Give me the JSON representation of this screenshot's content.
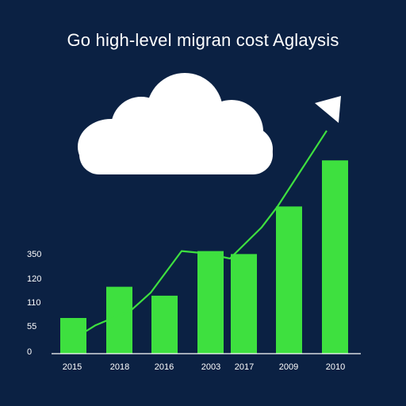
{
  "chart_data": {
    "type": "bar",
    "title": "Go high-level migran cost Aglaysis",
    "categories": [
      "2015",
      "2018",
      "2016",
      "2003",
      "2017",
      "2009",
      "2010"
    ],
    "values": [
      48,
      90,
      78,
      138,
      134,
      198,
      260
    ],
    "line": [
      30,
      38,
      58,
      82,
      138,
      135,
      128,
      170,
      198,
      300
    ],
    "y_tick_labels": [
      "0",
      "55",
      "110",
      "120",
      "350"
    ],
    "ylim": [
      0,
      320
    ],
    "grid": false,
    "colors": {
      "background": "#0b2143",
      "bar": "#3ee03f",
      "line": "#3ee03f",
      "text": "#ffffff",
      "cloud": "#ffffff"
    },
    "icons": [
      "cloud-icon",
      "arrow-head-icon"
    ]
  }
}
